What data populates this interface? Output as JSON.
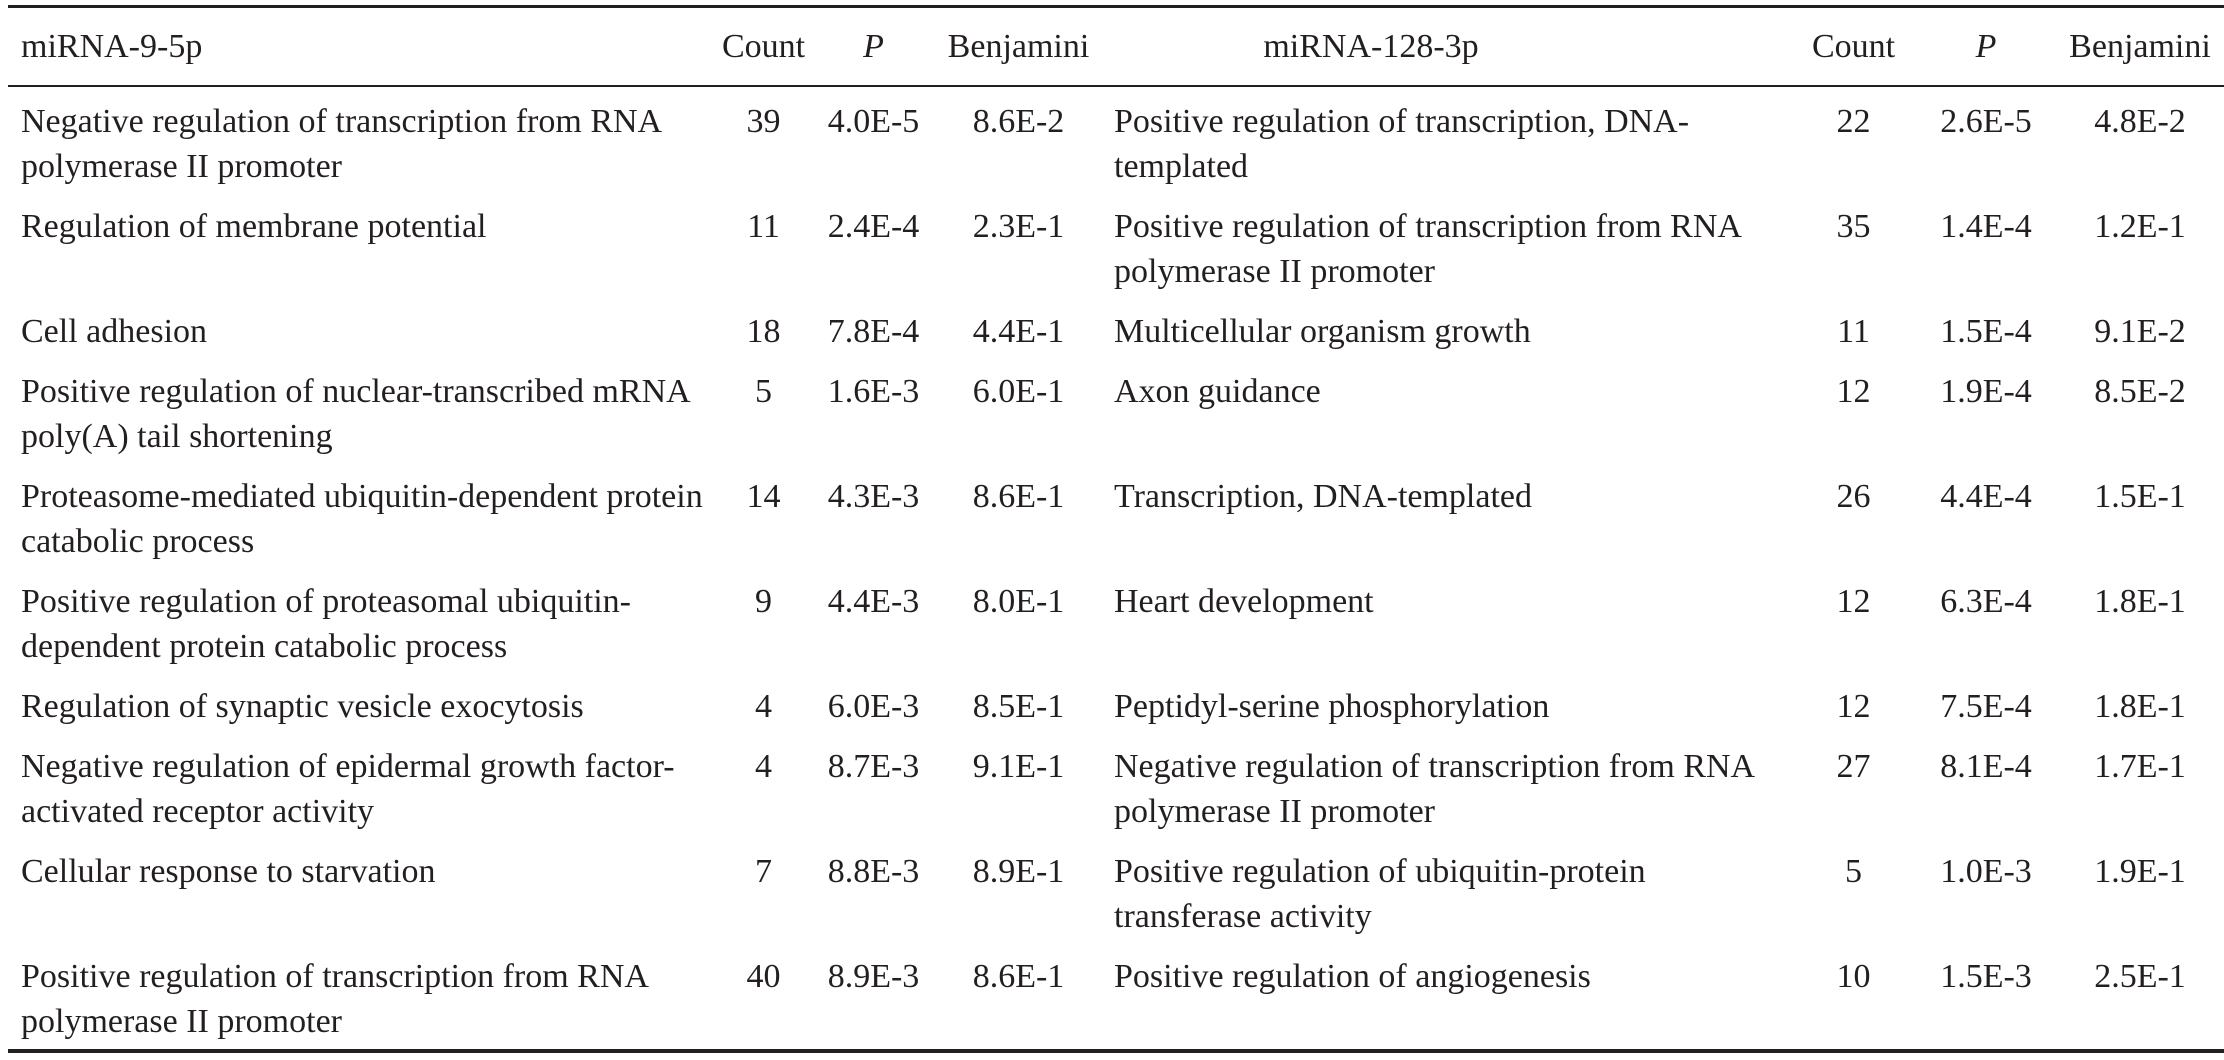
{
  "header": {
    "term1": "miRNA-9-5p",
    "count1": "Count",
    "p1": "P",
    "benjamini1": "Benjamini",
    "term2": "miRNA-128-3p",
    "count2": "Count",
    "p2": "P",
    "benjamini2": "Benjamini"
  },
  "rows": [
    {
      "term1": "Negative regulation of transcription from RNA polymerase II promoter",
      "count1": "39",
      "p1": "4.0E-5",
      "b1": "8.6E-2",
      "term2": "Positive regulation of transcription, DNA-templated",
      "count2": "22",
      "p2": "2.6E-5",
      "b2": "4.8E-2"
    },
    {
      "term1": "Regulation of membrane potential",
      "count1": "11",
      "p1": "2.4E-4",
      "b1": "2.3E-1",
      "term2": "Positive regulation of transcription from RNA polymerase II promoter",
      "count2": "35",
      "p2": "1.4E-4",
      "b2": "1.2E-1"
    },
    {
      "term1": "Cell adhesion",
      "count1": "18",
      "p1": "7.8E-4",
      "b1": "4.4E-1",
      "term2": "Multicellular organism growth",
      "count2": "11",
      "p2": "1.5E-4",
      "b2": "9.1E-2"
    },
    {
      "term1": "Positive regulation of nuclear-transcribed mRNA poly(A) tail shortening",
      "count1": "5",
      "p1": "1.6E-3",
      "b1": "6.0E-1",
      "term2": "Axon guidance",
      "count2": "12",
      "p2": "1.9E-4",
      "b2": "8.5E-2"
    },
    {
      "term1": "Proteasome-mediated ubiquitin-dependent protein catabolic process",
      "count1": "14",
      "p1": "4.3E-3",
      "b1": "8.6E-1",
      "term2": "Transcription, DNA-templated",
      "count2": "26",
      "p2": "4.4E-4",
      "b2": "1.5E-1"
    },
    {
      "term1": "Positive regulation of proteasomal ubiquitin-dependent protein catabolic process",
      "count1": "9",
      "p1": "4.4E-3",
      "b1": "8.0E-1",
      "term2": "Heart development",
      "count2": "12",
      "p2": "6.3E-4",
      "b2": "1.8E-1"
    },
    {
      "term1": "Regulation of synaptic vesicle exocytosis",
      "count1": "4",
      "p1": "6.0E-3",
      "b1": "8.5E-1",
      "term2": "Peptidyl-serine phosphorylation",
      "count2": "12",
      "p2": "7.5E-4",
      "b2": "1.8E-1"
    },
    {
      "term1": "Negative regulation of epidermal growth factor-activated receptor activity",
      "count1": "4",
      "p1": "8.7E-3",
      "b1": "9.1E-1",
      "term2": "Negative regulation of transcription from RNA polymerase II promoter",
      "count2": "27",
      "p2": "8.1E-4",
      "b2": "1.7E-1"
    },
    {
      "term1": "Cellular response to starvation",
      "count1": "7",
      "p1": "8.8E-3",
      "b1": "8.9E-1",
      "term2": "Positive regulation of ubiquitin-protein transferase activity",
      "count2": "5",
      "p2": "1.0E-3",
      "b2": "1.9E-1"
    },
    {
      "term1": "Positive regulation of transcription from RNA polymerase II promoter",
      "count1": "40",
      "p1": "8.9E-3",
      "b1": "8.6E-1",
      "term2": "Positive regulation of angiogenesis",
      "count2": "10",
      "p2": "1.5E-3",
      "b2": "2.5E-1"
    }
  ]
}
